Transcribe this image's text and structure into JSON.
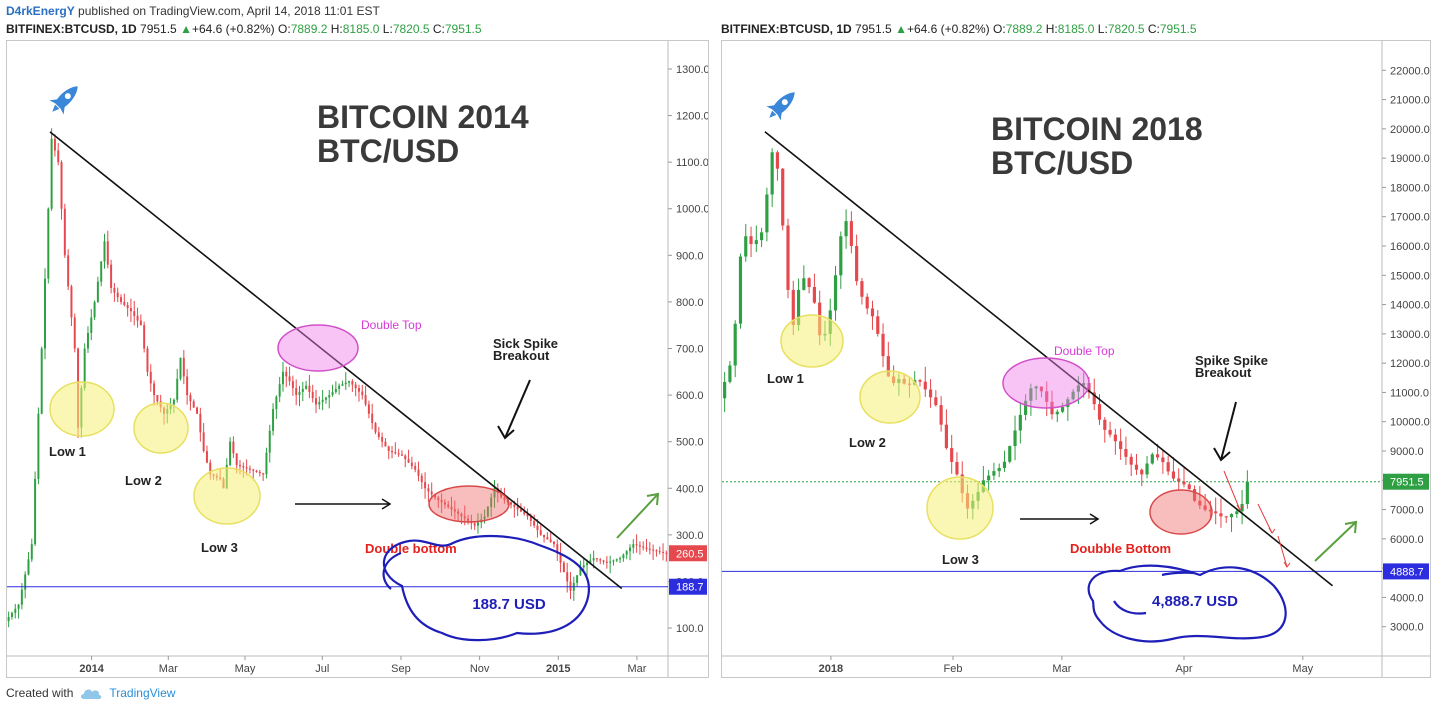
{
  "header": {
    "author": "D4rkEnergY",
    "published": "published on TradingView.com, April 14, 2018 11:01 EST"
  },
  "footer": {
    "created_with": "Created with",
    "brand": "TradingView",
    "brand_icon": "tradingview-cloud-icon"
  },
  "chart_data": [
    {
      "type": "candlestick",
      "symbol_line": {
        "symbol": "BITFINEX:BTCUSD, 1D",
        "last": "7951.5",
        "change": "+64.6 (+0.82%)",
        "o_label": "O:",
        "o": "7889.2",
        "h_label": "H:",
        "h": "8185.0",
        "l_label": "L:",
        "l": "7820.5",
        "c_label": "C:",
        "c": "7951.5"
      },
      "title_line1": "BITCOIN 2014",
      "title_line2": "BTC/USD",
      "ylim": [
        40,
        1360
      ],
      "y_ticks": [
        100.0,
        200.0,
        300.0,
        400.0,
        500.0,
        600.0,
        700.0,
        800.0,
        900.0,
        1000.0,
        1100.0,
        1200.0,
        1300.0
      ],
      "y_tick_labels": [
        "100.0",
        "200.0",
        "300.0",
        "400.0",
        "500.0",
        "600.0",
        "700.0",
        "800.0",
        "900.0",
        "1000.0",
        "1100.0",
        "1200.0",
        "1300.0"
      ],
      "x_ticks": [
        {
          "label": "2014",
          "bold": true,
          "pos": 0.128
        },
        {
          "label": "Mar",
          "bold": false,
          "pos": 0.244
        },
        {
          "label": "May",
          "bold": false,
          "pos": 0.36
        },
        {
          "label": "Jul",
          "bold": false,
          "pos": 0.477
        },
        {
          "label": "Sep",
          "bold": false,
          "pos": 0.596
        },
        {
          "label": "Nov",
          "bold": false,
          "pos": 0.715
        },
        {
          "label": "2015",
          "bold": true,
          "pos": 0.834
        },
        {
          "label": "Mar",
          "bold": false,
          "pos": 0.953
        }
      ],
      "price_path": [
        [
          0,
          115
        ],
        [
          0.02,
          150
        ],
        [
          0.04,
          280
        ],
        [
          0.055,
          700
        ],
        [
          0.07,
          1150
        ],
        [
          0.08,
          1100
        ],
        [
          0.09,
          900
        ],
        [
          0.105,
          700
        ],
        [
          0.11,
          530
        ],
        [
          0.12,
          700
        ],
        [
          0.135,
          800
        ],
        [
          0.15,
          930
        ],
        [
          0.16,
          830
        ],
        [
          0.175,
          800
        ],
        [
          0.19,
          780
        ],
        [
          0.205,
          750
        ],
        [
          0.215,
          650
        ],
        [
          0.225,
          600
        ],
        [
          0.24,
          560
        ],
        [
          0.255,
          590
        ],
        [
          0.265,
          680
        ],
        [
          0.275,
          600
        ],
        [
          0.29,
          560
        ],
        [
          0.3,
          480
        ],
        [
          0.31,
          430
        ],
        [
          0.325,
          420
        ],
        [
          0.33,
          400
        ],
        [
          0.34,
          500
        ],
        [
          0.35,
          450
        ],
        [
          0.37,
          440
        ],
        [
          0.39,
          430
        ],
        [
          0.405,
          570
        ],
        [
          0.42,
          650
        ],
        [
          0.43,
          630
        ],
        [
          0.44,
          600
        ],
        [
          0.455,
          620
        ],
        [
          0.47,
          580
        ],
        [
          0.49,
          600
        ],
        [
          0.505,
          620
        ],
        [
          0.52,
          630
        ],
        [
          0.54,
          600
        ],
        [
          0.56,
          520
        ],
        [
          0.58,
          480
        ],
        [
          0.6,
          470
        ],
        [
          0.62,
          440
        ],
        [
          0.635,
          400
        ],
        [
          0.65,
          380
        ],
        [
          0.67,
          360
        ],
        [
          0.69,
          340
        ],
        [
          0.71,
          320
        ],
        [
          0.725,
          340
        ],
        [
          0.74,
          400
        ],
        [
          0.75,
          380
        ],
        [
          0.77,
          360
        ],
        [
          0.79,
          340
        ],
        [
          0.81,
          300
        ],
        [
          0.83,
          280
        ],
        [
          0.845,
          220
        ],
        [
          0.855,
          180
        ],
        [
          0.87,
          230
        ],
        [
          0.89,
          250
        ],
        [
          0.91,
          240
        ],
        [
          0.93,
          250
        ],
        [
          0.95,
          280
        ],
        [
          0.97,
          270
        ],
        [
          0.985,
          265
        ],
        [
          1.0,
          260
        ]
      ],
      "last_price": {
        "value": 260.5,
        "label": "260.5",
        "color": "#e5484d"
      },
      "support": {
        "value": 188.7,
        "label": "188.7",
        "color": "#2d2de0"
      },
      "trendline": [
        [
          0.065,
          1165
        ],
        [
          0.93,
          185
        ]
      ],
      "annotations": {
        "low1": "Low 1",
        "low2": "Low 2",
        "low3": "Low 3",
        "double_top": "Double Top",
        "double_bottom": "Double bottom",
        "breakout_line1": "Sick Spike",
        "breakout_line2": "Breakout",
        "price_bubble": "188.7 USD"
      },
      "colors": {
        "up": "#2ea043",
        "down": "#e5484d",
        "annotation_pink": "#d63ad6",
        "annotation_red": "#e5211d",
        "bubble_blue": "#1e1eb9"
      }
    },
    {
      "type": "candlestick",
      "symbol_line": {
        "symbol": "BITFINEX:BTCUSD, 1D",
        "last": "7951.5",
        "change": "+64.6 (+0.82%)",
        "o_label": "O:",
        "o": "7889.2",
        "h_label": "H:",
        "h": "8185.0",
        "l_label": "L:",
        "l": "7820.5",
        "c_label": "C:",
        "c": "7951.5"
      },
      "title_line1": "BITCOIN 2018",
      "title_line2": "BTC/USD",
      "ylim": [
        2000,
        23000
      ],
      "y_ticks": [
        3000.0,
        4000.0,
        5000.0,
        6000.0,
        7000.0,
        8000.0,
        9000.0,
        10000.0,
        11000.0,
        12000.0,
        13000.0,
        14000.0,
        15000.0,
        16000.0,
        17000.0,
        18000.0,
        19000.0,
        20000.0,
        21000.0,
        22000.0
      ],
      "y_tick_labels": [
        "3000.0",
        "4000.0",
        "5000.0",
        "6000.0",
        "7000.0",
        "8000.0",
        "9000.0",
        "10000.0",
        "11000.0",
        "12000.0",
        "13000.0",
        "14000.0",
        "15000.0",
        "16000.0",
        "17000.0",
        "18000.0",
        "19000.0",
        "20000.0",
        "21000.0",
        "22000.0"
      ],
      "x_ticks": [
        {
          "label": "2018",
          "bold": true,
          "pos": 0.165
        },
        {
          "label": "Feb",
          "bold": false,
          "pos": 0.35
        },
        {
          "label": "Mar",
          "bold": false,
          "pos": 0.515
        },
        {
          "label": "Apr",
          "bold": false,
          "pos": 0.7
        },
        {
          "label": "May",
          "bold": false,
          "pos": 0.88
        }
      ],
      "price_path": [
        [
          0,
          10800
        ],
        [
          0.01,
          11500
        ],
        [
          0.02,
          12200
        ],
        [
          0.035,
          16500
        ],
        [
          0.05,
          16000
        ],
        [
          0.065,
          16500
        ],
        [
          0.08,
          19200
        ],
        [
          0.09,
          18500
        ],
        [
          0.1,
          15500
        ],
        [
          0.11,
          13000
        ],
        [
          0.12,
          14500
        ],
        [
          0.13,
          15000
        ],
        [
          0.145,
          14000
        ],
        [
          0.155,
          12500
        ],
        [
          0.17,
          14000
        ],
        [
          0.185,
          16500
        ],
        [
          0.195,
          17000
        ],
        [
          0.205,
          15000
        ],
        [
          0.22,
          14000
        ],
        [
          0.235,
          13500
        ],
        [
          0.245,
          12500
        ],
        [
          0.26,
          11200
        ],
        [
          0.27,
          11500
        ],
        [
          0.285,
          11200
        ],
        [
          0.3,
          11500
        ],
        [
          0.315,
          11000
        ],
        [
          0.33,
          10500
        ],
        [
          0.345,
          9000
        ],
        [
          0.36,
          8200
        ],
        [
          0.375,
          7000
        ],
        [
          0.39,
          7500
        ],
        [
          0.4,
          8000
        ],
        [
          0.415,
          8300
        ],
        [
          0.43,
          8500
        ],
        [
          0.445,
          9500
        ],
        [
          0.46,
          10500
        ],
        [
          0.475,
          11300
        ],
        [
          0.49,
          11000
        ],
        [
          0.505,
          10200
        ],
        [
          0.52,
          10500
        ],
        [
          0.535,
          11000
        ],
        [
          0.55,
          11400
        ],
        [
          0.565,
          10800
        ],
        [
          0.58,
          9800
        ],
        [
          0.595,
          9500
        ],
        [
          0.61,
          9000
        ],
        [
          0.625,
          8500
        ],
        [
          0.64,
          8200
        ],
        [
          0.655,
          8900
        ],
        [
          0.67,
          8700
        ],
        [
          0.685,
          8100
        ],
        [
          0.7,
          7900
        ],
        [
          0.71,
          7800
        ],
        [
          0.72,
          7300
        ],
        [
          0.735,
          7000
        ],
        [
          0.75,
          6900
        ],
        [
          0.765,
          6700
        ],
        [
          0.78,
          6900
        ],
        [
          0.79,
          7000
        ],
        [
          0.8,
          7951.5
        ]
      ],
      "last_price": {
        "value": 7951.5,
        "label": "7951.5",
        "color": "#2ea043"
      },
      "support": {
        "value": 4888.7,
        "label": "4888.7",
        "color": "#2d2de0"
      },
      "trendline": [
        [
          0.065,
          19900
        ],
        [
          0.925,
          4400
        ]
      ],
      "annotations": {
        "low1": "Low 1",
        "low2": "Low 2",
        "low3": "Low 3",
        "double_top": "Double Top",
        "double_bottom": "Doubble Bottom",
        "breakout_line1": "Spike Spike",
        "breakout_line2": "Breakout",
        "price_bubble": "4,888.7 USD"
      },
      "colors": {
        "up": "#2ea043",
        "down": "#e5484d",
        "annotation_pink": "#d63ad6",
        "annotation_red": "#e5211d",
        "bubble_blue": "#1e1eb9"
      }
    }
  ]
}
